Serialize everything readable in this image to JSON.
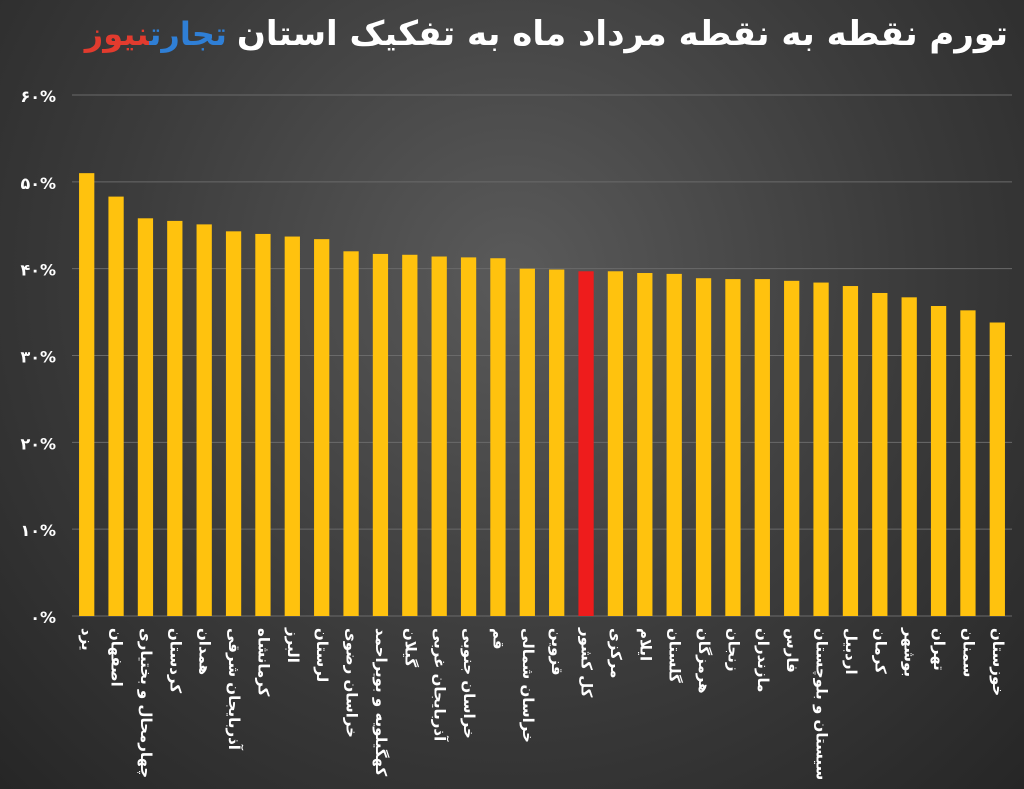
{
  "header": {
    "title": "تورم نقطه به نقطه مرداد ماه به تفکیک استان",
    "logo_part1": "تجارت",
    "logo_part2": "نیوز"
  },
  "colors": {
    "bar": "#ffc20e",
    "highlight": "#ee1c1c",
    "grid": "#6a6a6a",
    "text": "#ffffff",
    "logo_blue": "#2f7fd6",
    "logo_red": "#e23b2e"
  },
  "chart_data": {
    "type": "bar",
    "title": "تورم نقطه به نقطه مرداد ماه به تفکیک استان",
    "xlabel": "",
    "ylabel": "",
    "ylim": [
      0,
      60
    ],
    "grid": true,
    "y_ticks": [
      "۰%",
      "۱۰%",
      "۲۰%",
      "۳۰%",
      "۴۰%",
      "۵۰%",
      "۶۰%"
    ],
    "highlight_category": "کل کشور",
    "categories": [
      "یزد",
      "اصفهان",
      "چهارمحال و بختیاری",
      "کردستان",
      "همدان",
      "آذربایجان شرقی",
      "کرمانشاه",
      "البرز",
      "لرستان",
      "خراسان رضوی",
      "کهگیلویه و بویراحمد",
      "گیلان",
      "آذربایجان غربی",
      "خراسان جنوبی",
      "قم",
      "خراسان شمالی",
      "قزوین",
      "کل کشور",
      "مرکزی",
      "ایلام",
      "گلستان",
      "هرمزگان",
      "زنجان",
      "مازندران",
      "فارس",
      "سیستان و بلوچستان",
      "اردبیل",
      "کرمان",
      "بوشهر",
      "تهران",
      "سمنان",
      "خوزستان"
    ],
    "values": [
      51.0,
      48.3,
      45.8,
      45.5,
      45.1,
      44.3,
      44.0,
      43.7,
      43.4,
      42.0,
      41.7,
      41.6,
      41.4,
      41.3,
      41.2,
      40.0,
      39.9,
      39.7,
      39.7,
      39.5,
      39.4,
      38.9,
      38.8,
      38.8,
      38.6,
      38.4,
      38.0,
      37.2,
      36.7,
      35.7,
      35.2,
      33.8
    ]
  }
}
